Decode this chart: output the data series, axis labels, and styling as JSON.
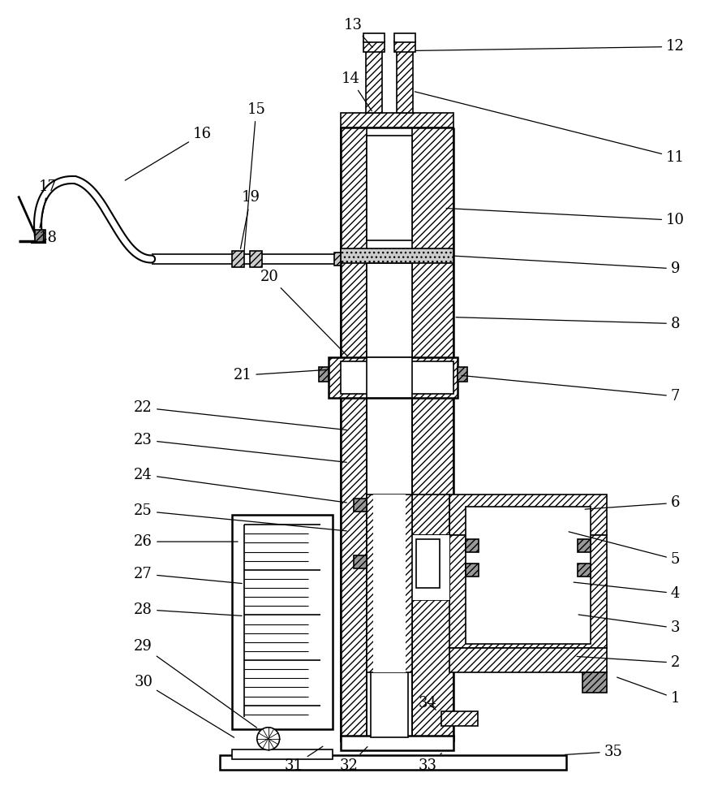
{
  "background": "#ffffff",
  "fig_width": 8.9,
  "fig_height": 10.0
}
